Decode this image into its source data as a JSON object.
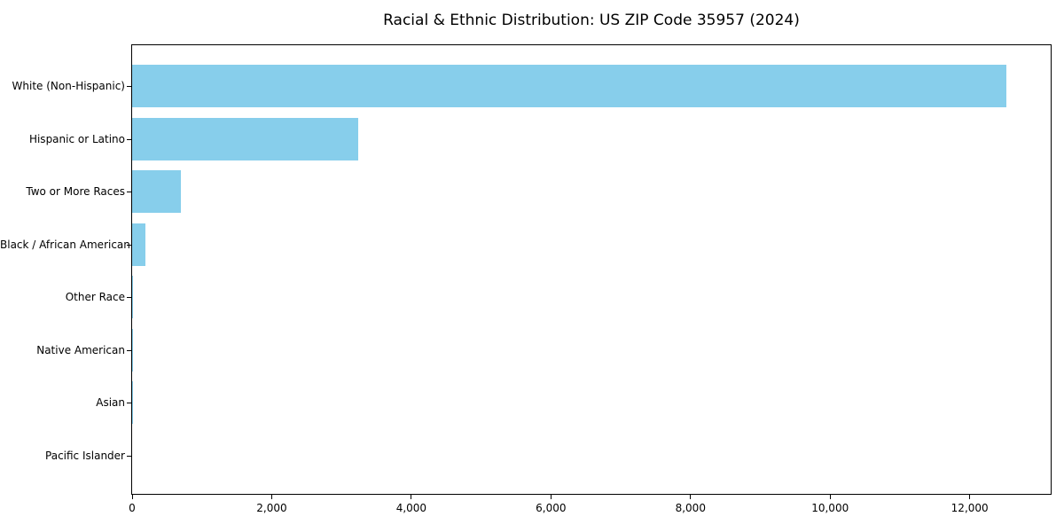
{
  "chart_data": {
    "type": "bar",
    "orientation": "horizontal",
    "title": "Racial & Ethnic Distribution: US ZIP Code 35957 (2024)",
    "categories": [
      "White (Non-Hispanic)",
      "Hispanic or Latino",
      "Two or More Races",
      "Black / African American",
      "Other Race",
      "Native American",
      "Asian",
      "Pacific Islander"
    ],
    "values": [
      12530,
      3235,
      700,
      190,
      15,
      12,
      5,
      0
    ],
    "bar_color": "#87CEEB",
    "xlabel": "",
    "ylabel": "",
    "xlim": [
      0,
      13160
    ],
    "x_ticks": [
      0,
      2000,
      4000,
      6000,
      8000,
      10000,
      12000
    ],
    "x_tick_labels": [
      "0",
      "2,000",
      "4,000",
      "6,000",
      "8,000",
      "10,000",
      "12,000"
    ],
    "grid": false,
    "legend_position": "none",
    "background_color": "#ffffff",
    "axis_color": "#000000"
  }
}
